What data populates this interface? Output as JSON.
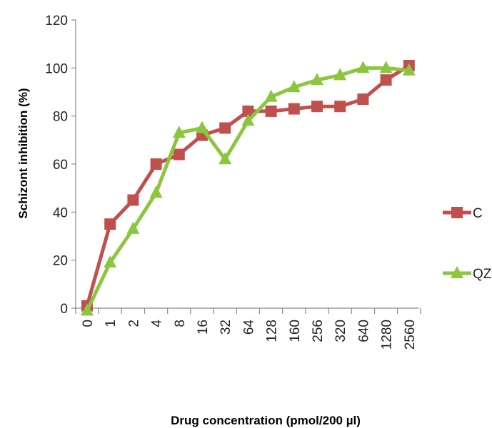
{
  "chart_data": {
    "type": "line",
    "xlabel": "Drug concentration (pmol/200 µl)",
    "ylabel": "Schizont inhibition (%)",
    "categories": [
      "0",
      "1",
      "2",
      "4",
      "8",
      "16",
      "32",
      "64",
      "128",
      "160",
      "256",
      "320",
      "640",
      "1280",
      "2560"
    ],
    "ylim": [
      0,
      120
    ],
    "yticks": [
      "0",
      "20",
      "40",
      "60",
      "80",
      "100",
      "120"
    ],
    "grid": false,
    "legend_position": "right",
    "series": [
      {
        "name": "C",
        "marker": "square",
        "color": "#c0504d",
        "values": [
          1,
          35,
          45,
          60,
          64,
          72,
          75,
          82,
          82,
          83,
          84,
          84,
          87,
          95,
          101
        ]
      },
      {
        "name": "QZ",
        "marker": "triangle",
        "color": "#8cc63f",
        "values": [
          -1,
          19,
          33,
          48,
          73,
          75,
          62,
          78,
          88,
          92,
          95,
          97,
          100,
          100,
          99
        ]
      }
    ]
  }
}
